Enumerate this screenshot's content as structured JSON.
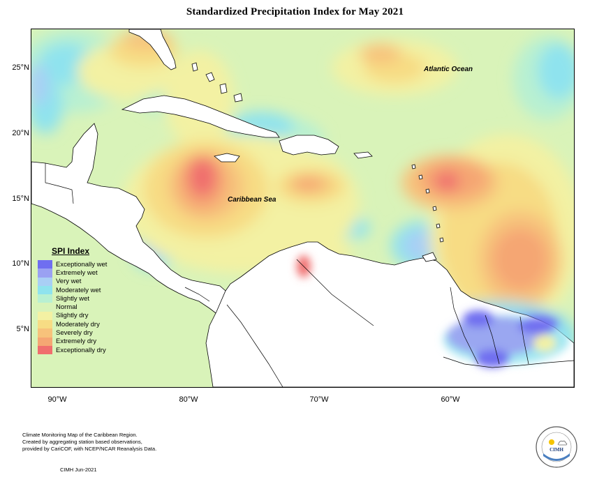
{
  "title": "Standardized Precipitation Index for May 2021",
  "region_labels": {
    "caribbean_sea": "Caribbean Sea",
    "atlantic_ocean": "Atlantic Ocean"
  },
  "axes": {
    "latitude_ticks": [
      "25°N",
      "20°N",
      "15°N",
      "10°N",
      "5°N"
    ],
    "longitude_ticks": [
      "90°W",
      "80°W",
      "70°W",
      "60°W"
    ]
  },
  "legend": {
    "title": "SPI Index",
    "items": [
      {
        "label": "Exceptionally wet",
        "color": "#6f6ef0"
      },
      {
        "label": "Extremely wet",
        "color": "#9aa1f2"
      },
      {
        "label": "Very wet",
        "color": "#a9cff5"
      },
      {
        "label": "Moderately wet",
        "color": "#8fe3ee"
      },
      {
        "label": "Slightly wet",
        "color": "#b8f0d2"
      },
      {
        "label": "Normal",
        "color": "#d9f3b9"
      },
      {
        "label": "Slightly dry",
        "color": "#f3f1a3"
      },
      {
        "label": "Moderately dry",
        "color": "#f7dc84"
      },
      {
        "label": "Severely dry",
        "color": "#f7c27b"
      },
      {
        "label": "Extremely dry",
        "color": "#f5a673"
      },
      {
        "label": "Exceptionally dry",
        "color": "#f06e6e"
      }
    ]
  },
  "footer": {
    "line1": "Climate Monitoring Map of the Caribbean Region.",
    "line2": "Created by aggregating station based observations,",
    "line3": "provided by CariCOF, with NCEP/NCAR Reanalysis Data.",
    "date": "CIMH Jun-2021"
  },
  "logo": {
    "text": "CIMH",
    "icon": "sun-cloud-icon"
  }
}
